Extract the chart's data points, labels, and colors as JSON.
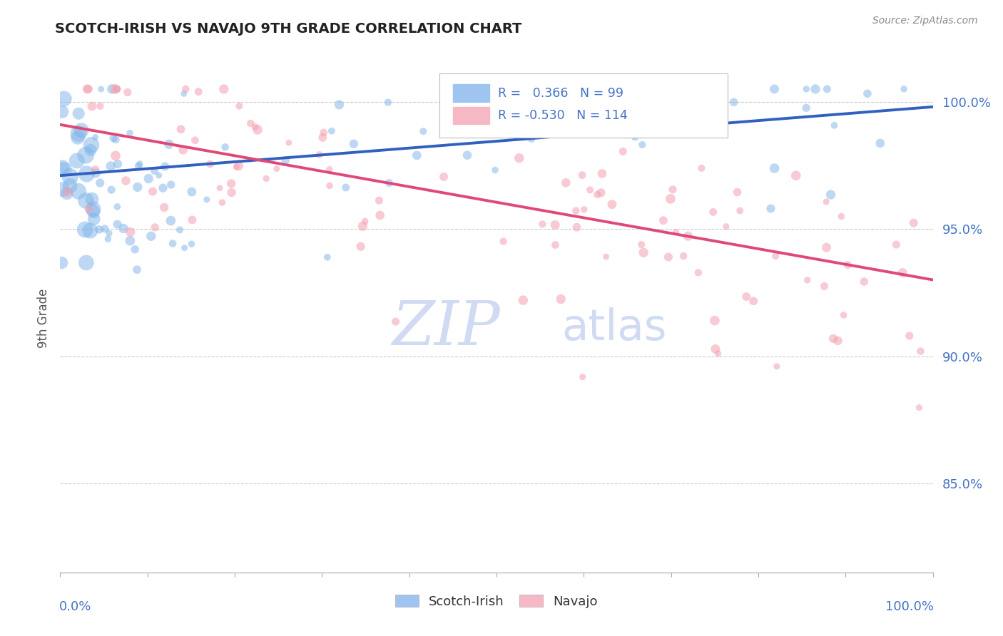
{
  "title": "SCOTCH-IRISH VS NAVAJO 9TH GRADE CORRELATION CHART",
  "source_text": "Source: ZipAtlas.com",
  "ylabel": "9th Grade",
  "blue_R": 0.366,
  "blue_N": 99,
  "pink_R": -0.53,
  "pink_N": 114,
  "blue_color": "#7EB3E8",
  "pink_color": "#F4A0B0",
  "blue_line_color": "#3060C0",
  "pink_line_color": "#E04878",
  "blue_legend_color": "#A0C4F0",
  "pink_legend_color": "#F5B8C4",
  "title_color": "#222222",
  "r_value_color": "#4472C4",
  "watermark_zip_color": "#C8D4F0",
  "watermark_atlas_color": "#C8D4F0",
  "background_color": "#FFFFFF",
  "ytick_labels": [
    "85.0%",
    "90.0%",
    "95.0%",
    "100.0%"
  ],
  "ytick_values": [
    0.85,
    0.9,
    0.95,
    1.0
  ],
  "ymin": 0.815,
  "ymax": 1.015,
  "xmin": 0.0,
  "xmax": 1.0,
  "blue_trend_x": [
    0.0,
    1.0
  ],
  "blue_trend_y": [
    0.971,
    0.998
  ],
  "pink_trend_x": [
    0.0,
    1.0
  ],
  "pink_trend_y": [
    0.991,
    0.93
  ]
}
